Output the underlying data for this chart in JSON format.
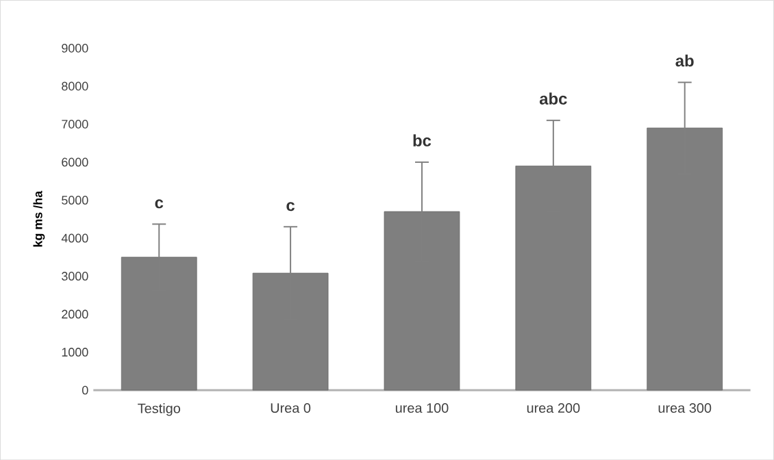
{
  "chart_data": {
    "type": "bar",
    "ylabel": "kg ms /ha",
    "categories": [
      "Testigo",
      "Urea 0",
      "urea 100",
      "urea 200",
      "urea 300"
    ],
    "values": [
      3500,
      3080,
      4700,
      5900,
      6900
    ],
    "errors": [
      870,
      1220,
      1300,
      1200,
      1200
    ],
    "color": "#7f7f7f",
    "ylim": [
      0,
      9000
    ],
    "yticks": [
      0,
      1000,
      2000,
      3000,
      4000,
      5000,
      6000,
      7000,
      8000,
      9000
    ],
    "annotations": [
      {
        "text": "c",
        "x": "Testigo",
        "y": 4370
      },
      {
        "text": "c",
        "x": "Urea 0",
        "y": 4300
      },
      {
        "text": "bc",
        "x": "urea 100",
        "y": 6000
      },
      {
        "text": "abc",
        "x": "urea 200",
        "y": 7100
      },
      {
        "text": "ab",
        "x": "urea 300",
        "y": 8100
      }
    ]
  }
}
